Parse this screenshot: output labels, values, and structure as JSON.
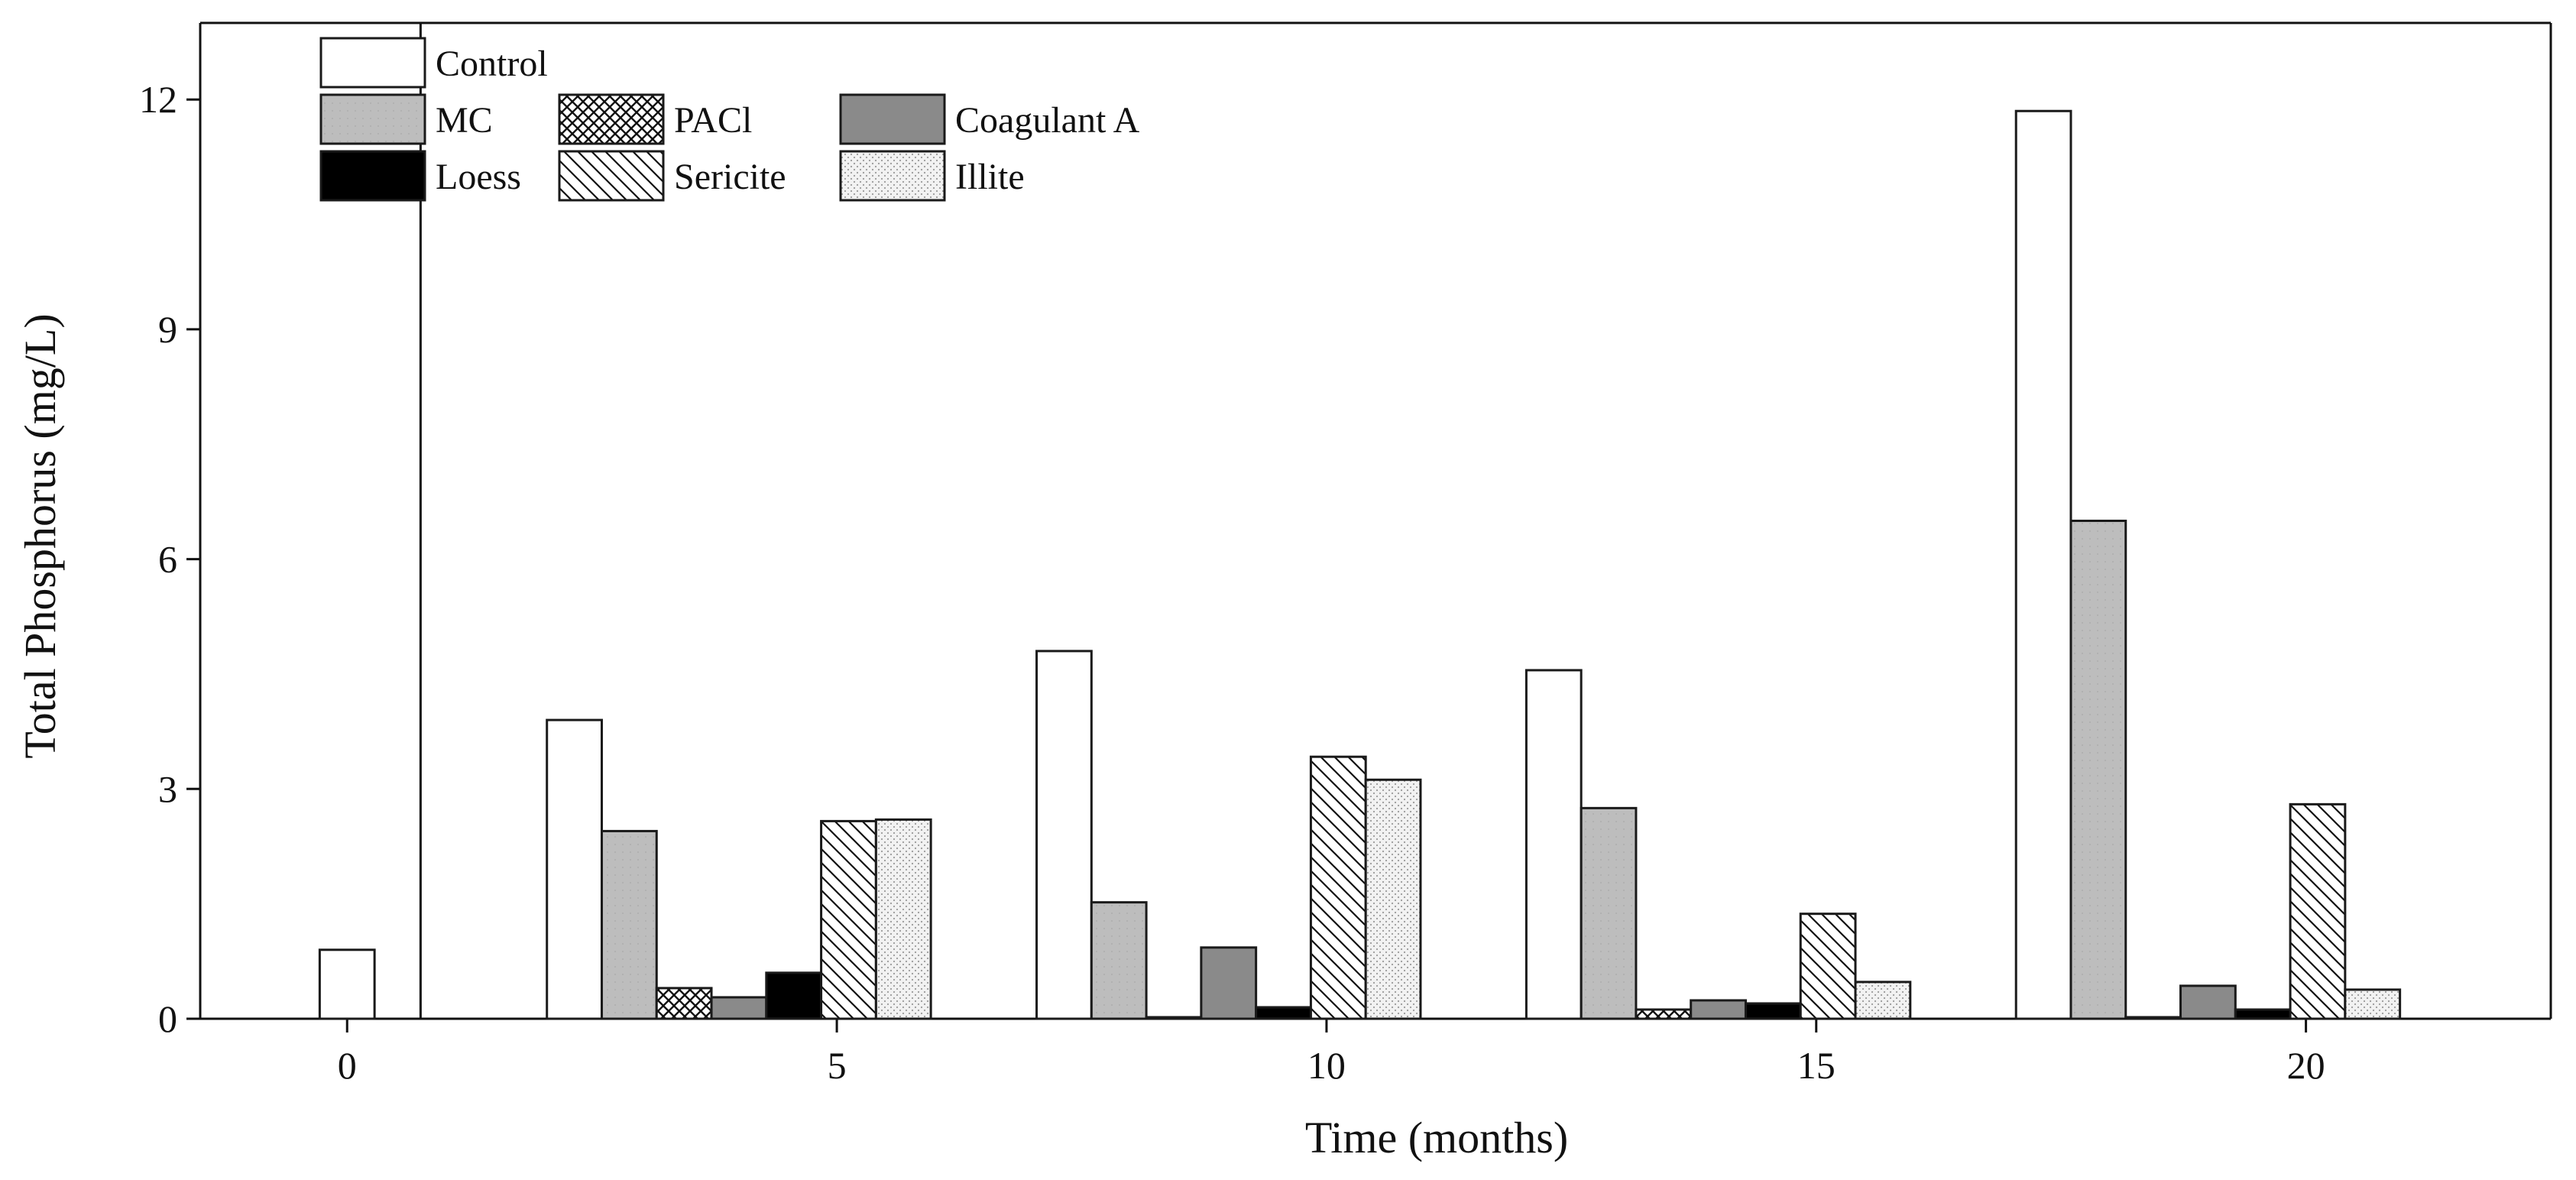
{
  "chart_data": {
    "type": "bar",
    "title": "",
    "xlabel": "Time (months)",
    "ylabel": "Total Phosphorus (mg/L)",
    "ylim": [
      0,
      13
    ],
    "xlim": [
      -1.5,
      22.5
    ],
    "x_ticks": [
      {
        "value": 0,
        "label": "0"
      },
      {
        "value": 5,
        "label": "5"
      },
      {
        "value": 10,
        "label": "10"
      },
      {
        "value": 15,
        "label": "15"
      },
      {
        "value": 20,
        "label": "20"
      }
    ],
    "y_ticks": [
      {
        "value": 0,
        "label": "0"
      },
      {
        "value": 3,
        "label": "3"
      },
      {
        "value": 6,
        "label": "6"
      },
      {
        "value": 9,
        "label": "9"
      },
      {
        "value": 12,
        "label": "12"
      }
    ],
    "initial": {
      "series": "Control",
      "x": 0,
      "value": 0.9
    },
    "time_points": [
      4,
      9,
      14,
      19
    ],
    "series": [
      {
        "name": "Control",
        "values": [
          3.9,
          4.8,
          4.55,
          11.85
        ]
      },
      {
        "name": "MC",
        "values": [
          2.45,
          1.52,
          2.75,
          6.5
        ]
      },
      {
        "name": "PACl",
        "values": [
          0.4,
          0.02,
          0.12,
          0.02
        ]
      },
      {
        "name": "Coagulant A",
        "values": [
          0.28,
          0.93,
          0.24,
          0.43
        ]
      },
      {
        "name": "Loess",
        "values": [
          0.6,
          0.15,
          0.2,
          0.12
        ]
      },
      {
        "name": "Sericite",
        "values": [
          2.58,
          3.42,
          1.37,
          2.8
        ]
      },
      {
        "name": "Illite",
        "values": [
          2.6,
          3.12,
          0.48,
          0.38
        ]
      }
    ],
    "legend": {
      "placement": "top-left inside plot",
      "rows": [
        [
          "Control"
        ],
        [
          "MC",
          "PACl",
          "Coagulant A"
        ],
        [
          "Loess",
          "Sericite",
          "Illite"
        ]
      ]
    },
    "colors": {
      "Control": "#ffffff",
      "MC": "#bdbdbd",
      "PACl": "#ffffff",
      "Coagulant A": "#8a8a8a",
      "Loess": "#000000",
      "Sericite": "#ffffff",
      "Illite": "#e8e8e8",
      "stroke": "#1a1a1a"
    },
    "grid": false
  }
}
